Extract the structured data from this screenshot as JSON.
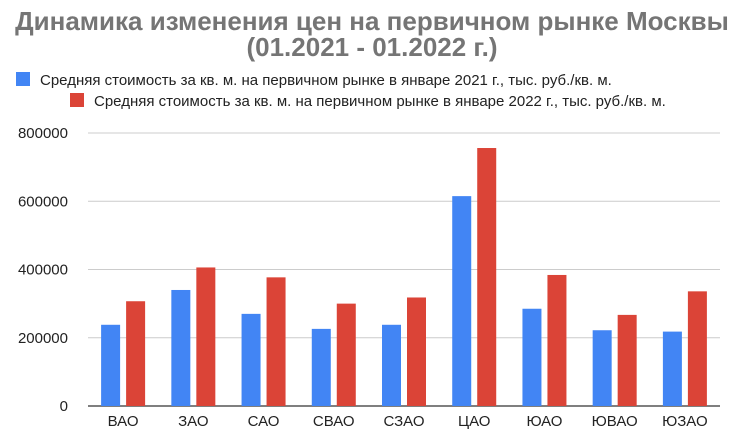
{
  "chart_data": {
    "type": "bar",
    "title": "Динамика изменения цен на первичном рынке Москвы",
    "subtitle": "(01.2021 - 01.2022 г.)",
    "xlabel": "",
    "ylabel": "",
    "categories": [
      "ВАО",
      "ЗАО",
      "САО",
      "СВАО",
      "СЗАО",
      "ЦАО",
      "ЮАО",
      "ЮВАО",
      "ЮЗАО"
    ],
    "series": [
      {
        "name": "Средняя стоимость за кв. м. на первичном рынке в январе 2021 г., тыс. руб./кв. м.",
        "color": "#4285F4",
        "values": [
          238000,
          340000,
          270000,
          226000,
          238000,
          615000,
          285000,
          222000,
          218000
        ]
      },
      {
        "name": "Средняя стоимость за кв. м. на первичном рынке в январе 2022 г., тыс. руб./кв. м.",
        "color": "#DB4437",
        "values": [
          307000,
          406000,
          377000,
          300000,
          318000,
          756000,
          384000,
          267000,
          336000
        ]
      }
    ],
    "yticks": [
      "0",
      "200000",
      "400000",
      "600000",
      "800000"
    ],
    "ylim": [
      0,
      800000
    ],
    "grid": true,
    "legend_position": "top-left"
  }
}
